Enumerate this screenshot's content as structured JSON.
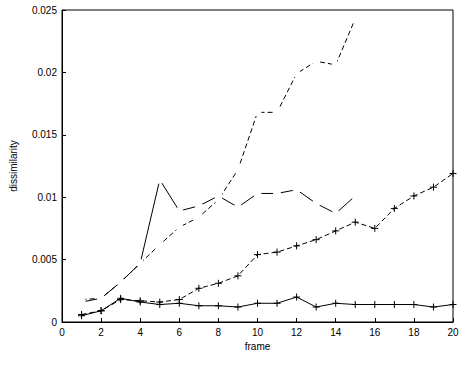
{
  "chart_data": {
    "type": "line",
    "x_label": "frame",
    "y_label": "dissimilarity",
    "xlim": [
      0,
      20
    ],
    "xticks": [
      0,
      2,
      4,
      6,
      8,
      10,
      12,
      14,
      16,
      18,
      20
    ],
    "ylim": [
      0,
      0.025
    ],
    "yticks": [
      0,
      0.005,
      0.01,
      0.015,
      0.02,
      0.025
    ],
    "grid": false,
    "series": [
      {
        "color": "#000000",
        "marker": "circle",
        "line_style": "dashed",
        "x": [
          1,
          2,
          3,
          4,
          5,
          6,
          7,
          8,
          9,
          10,
          11,
          12,
          13,
          14,
          15
        ],
        "values": [
          0.0018,
          0.0019,
          0.0032,
          0.0047,
          0.0062,
          0.0076,
          0.0084,
          0.0098,
          0.0122,
          0.0168,
          0.0168,
          0.0199,
          0.0209,
          0.0206,
          0.0243
        ]
      },
      {
        "color": "#000000",
        "marker": "circle",
        "line_style": "solid",
        "x": [
          1,
          2,
          3,
          4,
          5,
          6,
          7,
          8,
          9,
          10,
          11,
          12,
          13,
          14,
          15
        ],
        "values": [
          0.0016,
          0.0019,
          0.0032,
          0.0047,
          0.0114,
          0.0089,
          0.0093,
          0.0101,
          0.0092,
          0.0103,
          0.0103,
          0.0106,
          0.0095,
          0.0087,
          0.0101
        ]
      },
      {
        "color": "#000000",
        "marker": "plus",
        "line_style": "dashed",
        "x": [
          1,
          2,
          3,
          4,
          5,
          6,
          7,
          8,
          9,
          10,
          11,
          12,
          13,
          14,
          15,
          16,
          17,
          18,
          19,
          20
        ],
        "values": [
          0.0006,
          0.0009,
          0.0018,
          0.0017,
          0.0016,
          0.0018,
          0.0027,
          0.0031,
          0.0037,
          0.0054,
          0.0056,
          0.0061,
          0.0066,
          0.0073,
          0.008,
          0.0075,
          0.0091,
          0.0101,
          0.0108,
          0.0119
        ]
      },
      {
        "color": "#000000",
        "marker": "plus",
        "line_style": "solid",
        "x": [
          1,
          2,
          3,
          4,
          5,
          6,
          7,
          8,
          9,
          10,
          11,
          12,
          13,
          14,
          15,
          16,
          17,
          18,
          19,
          20
        ],
        "values": [
          0.0005,
          0.0009,
          0.0019,
          0.0016,
          0.0014,
          0.0015,
          0.0013,
          0.0013,
          0.0012,
          0.0015,
          0.0015,
          0.002,
          0.0012,
          0.0015,
          0.0014,
          0.0014,
          0.0014,
          0.0014,
          0.0012,
          0.0014
        ]
      }
    ]
  }
}
